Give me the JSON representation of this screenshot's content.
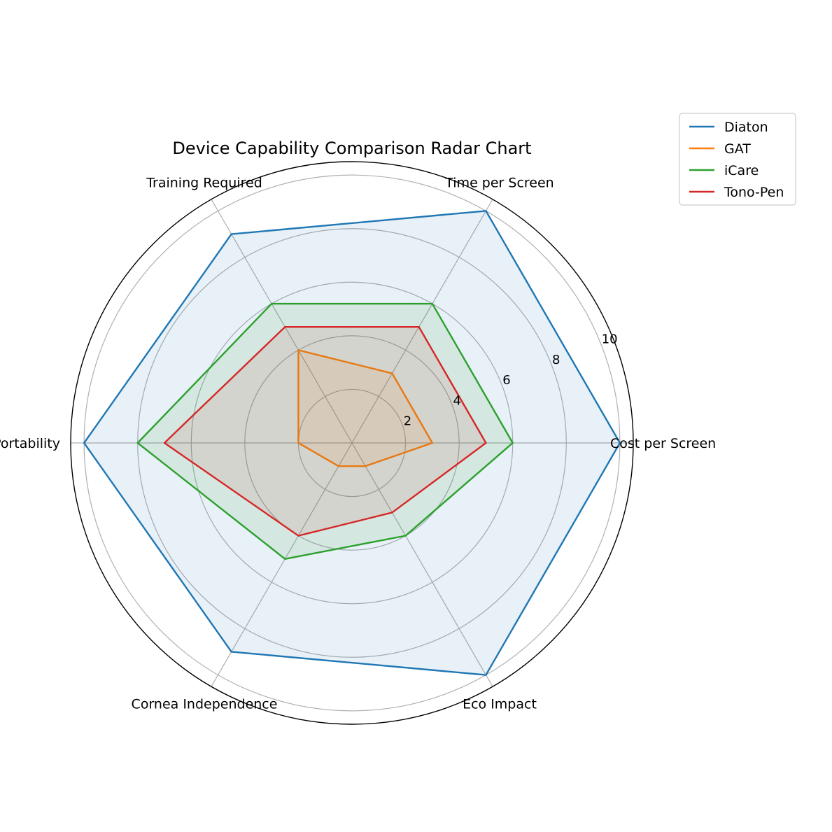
{
  "chart_data": {
    "type": "radar",
    "title": "Device Capability Comparison Radar Chart",
    "axes": [
      "Cost per Screen",
      "Time per Screen",
      "Training Required",
      "Portability",
      "Cornea Independence",
      "Eco Impact"
    ],
    "radial_ticks": [
      "2",
      "4",
      "6",
      "8",
      "10"
    ],
    "radial_tick_values": [
      2,
      4,
      6,
      8,
      10
    ],
    "rmax": 10.5,
    "grid": true,
    "legend_position": "top-right",
    "fill_opacity": 0.1,
    "series": [
      {
        "name": "Diaton",
        "color": "#1f77b4",
        "values": [
          10,
          10,
          9,
          10,
          9,
          10
        ]
      },
      {
        "name": "GAT",
        "color": "#ff7f0e",
        "values": [
          3,
          3,
          4,
          2,
          1,
          1
        ]
      },
      {
        "name": "iCare",
        "color": "#2ca02c",
        "values": [
          6,
          6,
          6,
          8,
          5,
          4
        ]
      },
      {
        "name": "Tono-Pen",
        "color": "#d62728",
        "values": [
          5,
          5,
          5,
          7,
          4,
          3
        ]
      }
    ]
  }
}
